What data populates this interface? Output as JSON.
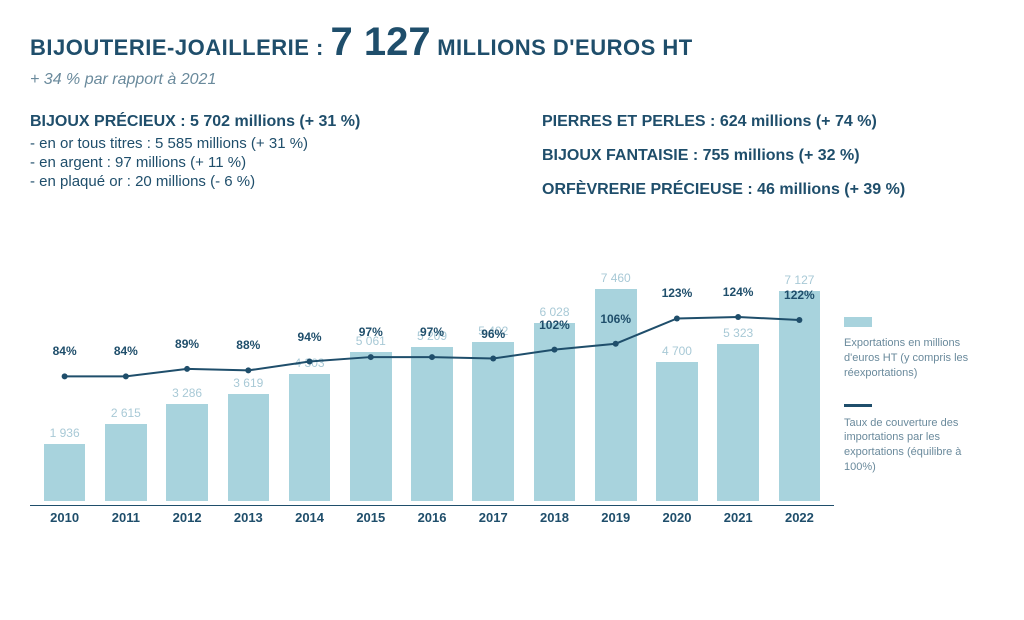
{
  "header": {
    "title_prefix": "BIJOUTERIE-JOAILLERIE : ",
    "title_number": "7 127",
    "title_suffix": " MILLIONS D'EUROS HT",
    "subtitle": "+ 34 % par rapport à 2021"
  },
  "categories": {
    "left": {
      "title": "BIJOUX PRÉCIEUX : 5 702 millions (+ 31 %)",
      "details": [
        "- en or tous titres : 5 585 millions (+ 31 %)",
        "- en argent : 97 millions (+ 11 %)",
        "- en plaqué or : 20 millions (- 6 %)"
      ]
    },
    "right": [
      "PIERRES ET PERLES : 624 millions (+ 74 %)",
      "BIJOUX FANTAISIE : 755 millions (+ 32 %)",
      "ORFÈVRERIE PRÉCIEUSE : 46 millions (+ 39 %)"
    ]
  },
  "chart": {
    "type": "bar+line",
    "years": [
      "2010",
      "2011",
      "2012",
      "2013",
      "2014",
      "2015",
      "2016",
      "2017",
      "2018",
      "2019",
      "2020",
      "2021",
      "2022"
    ],
    "bar_values": [
      1936,
      2615,
      3286,
      3619,
      4303,
      5061,
      5209,
      5402,
      6028,
      7460,
      4700,
      5323,
      7127
    ],
    "bar_labels": [
      "1  936",
      "2  615",
      "3  286",
      "3  619",
      "4  303",
      "5  061",
      "5  209",
      "5  402",
      "6  028",
      "7  460",
      "4  700",
      "5  323",
      "7  127"
    ],
    "line_pct": [
      84,
      84,
      89,
      88,
      94,
      97,
      97,
      96,
      102,
      106,
      123,
      124,
      122
    ],
    "bar_color": "#a8d3dd",
    "bar_label_color": "#a8c9d6",
    "line_color": "#1f4e6b",
    "axis_color": "#1f4e6b",
    "background_color": "#ffffff",
    "y_max_bar": 7800,
    "y_max_line": 155,
    "bar_width_ratio": 0.68,
    "bar_label_fontsize": 12,
    "pct_label_fontsize": 12,
    "xlabel_fontsize": 13
  },
  "legend": {
    "bars": {
      "swatch_color": "#a8d3dd",
      "text": "Exportations en millions d'euros HT (y compris les réexportations)"
    },
    "line": {
      "swatch_color": "#1f4e6b",
      "text": "Taux de couverture des importations par les exportations (équilibre à 100%)"
    }
  }
}
